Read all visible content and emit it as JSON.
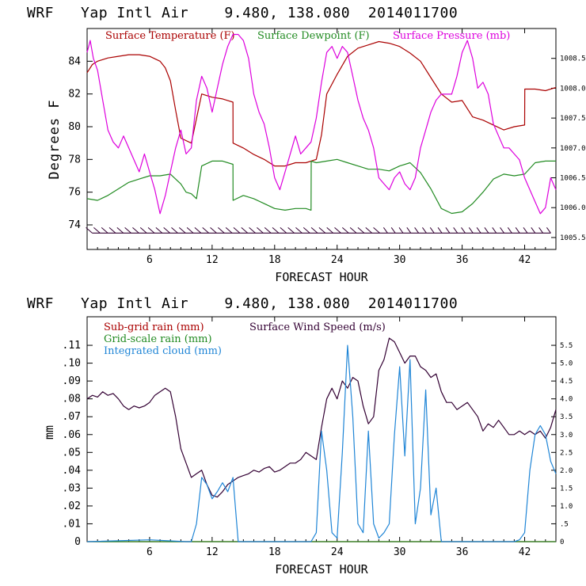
{
  "colors": {
    "temp": "#aa0000",
    "dew": "#228b22",
    "pres": "#dd00dd",
    "wind": "#330033",
    "cloud": "#1f85d6",
    "barb": "#330033"
  },
  "chart_data": [
    {
      "type": "line",
      "title": "WRF   Yap Intl Air    9.480, 138.080  2014011700",
      "xlabel": "FORECAST HOUR",
      "ylabel": "Degrees F",
      "xlim": [
        0,
        45
      ],
      "ylim": [
        72.5,
        86.0
      ],
      "xticks": [
        6,
        12,
        18,
        24,
        30,
        36,
        42
      ],
      "yticks": [
        74,
        76,
        78,
        80,
        82,
        84
      ],
      "y2lim": [
        1005.3,
        1009.0
      ],
      "y2ticks": [
        1005.5,
        1006.0,
        1006.5,
        1007.0,
        1007.5,
        1008.0,
        1008.5
      ],
      "y2tick_labels": [
        "1005.5",
        "1006.0",
        "1006.5",
        "1007.0",
        "1007.5",
        "1008.0",
        "1008.5"
      ],
      "legend": [
        "Surface Temperature (F)",
        "Surface Dewpoint (F)",
        "Surface Pressure (mb)"
      ],
      "series": [
        {
          "name": "Surface Temperature (F)",
          "axis": "left",
          "color_key": "temp",
          "x": [
            0,
            0.5,
            1,
            2,
            3,
            4,
            5,
            6,
            7,
            7.5,
            8,
            8.5,
            9,
            10,
            10.5,
            11,
            12,
            13,
            14,
            14.01,
            15,
            16,
            17,
            18,
            19,
            20,
            21,
            22,
            22.5,
            23,
            24,
            25,
            26,
            27,
            28,
            29,
            30,
            31,
            32,
            33,
            34,
            35,
            36,
            37,
            38,
            39,
            40,
            41,
            42,
            42.01,
            43,
            44,
            45
          ],
          "y": [
            83.3,
            83.8,
            84.0,
            84.2,
            84.3,
            84.4,
            84.4,
            84.3,
            84.0,
            83.6,
            82.8,
            81.0,
            79.3,
            79.0,
            80.5,
            82.0,
            81.8,
            81.7,
            81.5,
            79.0,
            78.7,
            78.3,
            78.0,
            77.6,
            77.6,
            77.8,
            77.8,
            78.0,
            79.5,
            82.0,
            83.2,
            84.3,
            84.8,
            85.0,
            85.2,
            85.1,
            84.9,
            84.5,
            84.0,
            83.0,
            82.0,
            81.5,
            81.6,
            80.6,
            80.4,
            80.1,
            79.8,
            80.0,
            80.1,
            82.3,
            82.3,
            82.2,
            82.4
          ]
        },
        {
          "name": "Surface Dewpoint (F)",
          "axis": "left",
          "color_key": "dew",
          "x": [
            0,
            1,
            2,
            3,
            4,
            5,
            6,
            7,
            8,
            9,
            9.5,
            10,
            10.5,
            11,
            12,
            13,
            14,
            14.01,
            15,
            16,
            17,
            18,
            19,
            20,
            21,
            21.5,
            21.51,
            22,
            23,
            24,
            25,
            26,
            27,
            28,
            29,
            30,
            31,
            32,
            33,
            34,
            35,
            36,
            37,
            38,
            39,
            40,
            41,
            42,
            43,
            44,
            45
          ],
          "y": [
            75.6,
            75.5,
            75.8,
            76.2,
            76.6,
            76.8,
            77.0,
            77.0,
            77.1,
            76.5,
            76.0,
            75.9,
            75.6,
            77.6,
            77.9,
            77.9,
            77.7,
            75.5,
            75.8,
            75.6,
            75.3,
            75.0,
            74.9,
            75.0,
            75.0,
            74.9,
            77.9,
            77.8,
            77.9,
            78.0,
            77.8,
            77.6,
            77.4,
            77.4,
            77.3,
            77.6,
            77.8,
            77.2,
            76.2,
            75.0,
            74.7,
            74.8,
            75.3,
            76.0,
            76.8,
            77.1,
            77.0,
            77.1,
            77.8,
            77.9,
            77.9
          ]
        },
        {
          "name": "Surface Pressure (mb)",
          "axis": "right",
          "color_key": "pres",
          "x": [
            0,
            0.3,
            0.6,
            1,
            1.5,
            2,
            2.5,
            3,
            3.5,
            4,
            4.5,
            5,
            5.5,
            6,
            6.5,
            7,
            7.5,
            8,
            8.5,
            9,
            9.5,
            10,
            10.5,
            11,
            11.5,
            12,
            12.5,
            13,
            13.5,
            14,
            14.5,
            15,
            15.5,
            16,
            16.5,
            17,
            17.5,
            18,
            18.5,
            19,
            19.5,
            20,
            20.5,
            21,
            21.5,
            22,
            22.5,
            23,
            23.5,
            24,
            24.5,
            25,
            25.5,
            26,
            26.5,
            27,
            27.5,
            28,
            28.5,
            29,
            29.5,
            30,
            30.5,
            31,
            31.5,
            32,
            32.5,
            33,
            33.5,
            34,
            34.5,
            35,
            35.5,
            36,
            36.5,
            37,
            37.5,
            38,
            38.5,
            39,
            39.5,
            40,
            40.5,
            41,
            41.5,
            42,
            42.5,
            43,
            43.5,
            44,
            44.5,
            45
          ],
          "y": [
            1008.6,
            1008.8,
            1008.5,
            1008.3,
            1007.8,
            1007.3,
            1007.1,
            1007.0,
            1007.2,
            1007.0,
            1006.8,
            1006.6,
            1006.9,
            1006.6,
            1006.3,
            1005.9,
            1006.2,
            1006.6,
            1007.0,
            1007.3,
            1006.9,
            1007.0,
            1007.8,
            1008.2,
            1008.0,
            1007.6,
            1008.0,
            1008.4,
            1008.7,
            1008.9,
            1008.9,
            1008.8,
            1008.5,
            1007.9,
            1007.6,
            1007.4,
            1007.0,
            1006.5,
            1006.3,
            1006.6,
            1006.9,
            1007.2,
            1006.9,
            1007.0,
            1007.1,
            1007.5,
            1008.1,
            1008.6,
            1008.7,
            1008.5,
            1008.7,
            1008.6,
            1008.2,
            1007.8,
            1007.5,
            1007.3,
            1007.0,
            1006.5,
            1006.4,
            1006.3,
            1006.5,
            1006.6,
            1006.4,
            1006.3,
            1006.5,
            1007.0,
            1007.3,
            1007.6,
            1007.8,
            1007.9,
            1007.9,
            1007.9,
            1008.2,
            1008.6,
            1008.8,
            1008.5,
            1008.0,
            1008.1,
            1007.9,
            1007.4,
            1007.2,
            1007.0,
            1007.0,
            1006.9,
            1006.8,
            1006.5,
            1006.3,
            1006.1,
            1005.9,
            1006.0,
            1006.5,
            1006.3
          ]
        }
      ],
      "wind_barbs": {
        "x_start": 0.5,
        "x_end": 44.5,
        "count": 60,
        "y_value": 73.5
      }
    },
    {
      "type": "line",
      "title": "WRF   Yap Intl Air    9.480, 138.080  2014011700",
      "xlabel": "FORECAST HOUR",
      "ylabel": "mm",
      "xlim": [
        0,
        45
      ],
      "ylim": [
        0,
        0.126
      ],
      "xticks": [
        6,
        12,
        18,
        24,
        30,
        36,
        42
      ],
      "yticks": [
        0,
        0.01,
        0.02,
        0.03,
        0.04,
        0.05,
        0.06,
        0.07,
        0.08,
        0.09,
        0.1,
        0.11
      ],
      "ytick_labels": [
        "0",
        ".01",
        ".02",
        ".03",
        ".04",
        ".05",
        ".06",
        ".07",
        ".08",
        ".09",
        ".10",
        ".11"
      ],
      "y2lim": [
        0,
        6.3
      ],
      "y2ticks": [
        0,
        0.5,
        1.0,
        1.5,
        2.0,
        2.5,
        3.0,
        3.5,
        4.0,
        4.5,
        5.0,
        5.5
      ],
      "y2tick_labels": [
        "0",
        ".5",
        "1.0",
        "1.5",
        "2.0",
        "2.5",
        "3.0",
        "3.5",
        "4.0",
        "4.5",
        "5.0",
        "5.5"
      ],
      "legend": [
        "Sub-grid rain (mm)",
        "Surface Wind Speed (m/s)",
        "Grid-scale rain (mm)",
        "Integrated cloud (mm)"
      ],
      "series": [
        {
          "name": "Sub-grid rain (mm)",
          "axis": "left",
          "color_key": "temp",
          "x": [
            0,
            45
          ],
          "y": [
            0,
            0
          ]
        },
        {
          "name": "Grid-scale rain (mm)",
          "axis": "left",
          "color_key": "dew",
          "x": [
            0,
            45
          ],
          "y": [
            0,
            0
          ]
        },
        {
          "name": "Surface Wind Speed (m/s)",
          "axis": "right",
          "color_key": "wind",
          "x": [
            0,
            0.5,
            1,
            1.5,
            2,
            2.5,
            3,
            3.5,
            4,
            4.5,
            5,
            5.5,
            6,
            6.5,
            7,
            7.5,
            8,
            8.5,
            9,
            9.5,
            10,
            10.5,
            11,
            11.5,
            12,
            12.5,
            13,
            13.5,
            14,
            14.5,
            15,
            15.5,
            16,
            16.5,
            17,
            17.5,
            18,
            18.5,
            19,
            19.5,
            20,
            20.5,
            21,
            21.5,
            22,
            22.5,
            23,
            23.5,
            24,
            24.5,
            25,
            25.5,
            26,
            26.5,
            27,
            27.5,
            28,
            28.5,
            29,
            29.5,
            30,
            30.5,
            31,
            31.5,
            32,
            32.5,
            33,
            33.5,
            34,
            34.5,
            35,
            35.5,
            36,
            36.5,
            37,
            37.5,
            38,
            38.5,
            39,
            39.5,
            40,
            40.5,
            41,
            41.5,
            42,
            42.5,
            43,
            43.5,
            44,
            44.5,
            45
          ],
          "y": [
            4.0,
            4.1,
            4.05,
            4.2,
            4.1,
            4.15,
            4.0,
            3.8,
            3.7,
            3.8,
            3.75,
            3.8,
            3.9,
            4.1,
            4.2,
            4.3,
            4.2,
            3.5,
            2.6,
            2.2,
            1.8,
            1.9,
            2.0,
            1.6,
            1.3,
            1.25,
            1.4,
            1.6,
            1.7,
            1.8,
            1.85,
            1.9,
            2.0,
            1.95,
            2.05,
            2.1,
            1.95,
            2.0,
            2.1,
            2.2,
            2.2,
            2.3,
            2.5,
            2.4,
            2.3,
            3.2,
            4.0,
            4.3,
            4.0,
            4.5,
            4.3,
            4.6,
            4.5,
            3.8,
            3.3,
            3.5,
            4.8,
            5.1,
            5.7,
            5.6,
            5.3,
            5.0,
            5.2,
            5.2,
            4.9,
            4.8,
            4.6,
            4.7,
            4.2,
            3.9,
            3.9,
            3.7,
            3.8,
            3.9,
            3.7,
            3.5,
            3.1,
            3.3,
            3.2,
            3.4,
            3.2,
            3.0,
            3.0,
            3.1,
            3.0,
            3.1,
            3.0,
            3.1,
            2.9,
            3.2,
            3.7
          ]
        },
        {
          "name": "Integrated cloud (mm)",
          "axis": "left",
          "color_key": "cloud",
          "x": [
            0,
            6,
            9.5,
            10,
            10.5,
            11,
            11.5,
            12,
            12.5,
            13,
            13.5,
            14,
            14.5,
            21.5,
            22,
            22.5,
            23,
            23.5,
            24,
            24.5,
            25,
            25.5,
            26,
            26.5,
            27,
            27.5,
            28,
            28.5,
            29,
            29.5,
            30,
            30.5,
            31,
            31.5,
            32,
            32.5,
            33,
            33.5,
            34,
            35,
            36,
            41,
            41.5,
            42,
            42.5,
            43,
            43.5,
            44,
            44.5,
            45
          ],
          "y": [
            0,
            0.001,
            0,
            0,
            0.01,
            0.036,
            0.032,
            0.024,
            0.028,
            0.033,
            0.028,
            0.036,
            0,
            0,
            0.005,
            0.062,
            0.04,
            0.005,
            0.002,
            0.05,
            0.11,
            0.07,
            0.01,
            0.005,
            0.062,
            0.01,
            0.002,
            0.005,
            0.01,
            0.06,
            0.098,
            0.048,
            0.102,
            0.01,
            0.03,
            0.085,
            0.015,
            0.03,
            0,
            0,
            0,
            0,
            0.001,
            0.005,
            0.04,
            0.06,
            0.065,
            0.06,
            0.045,
            0.038
          ]
        }
      ]
    }
  ]
}
